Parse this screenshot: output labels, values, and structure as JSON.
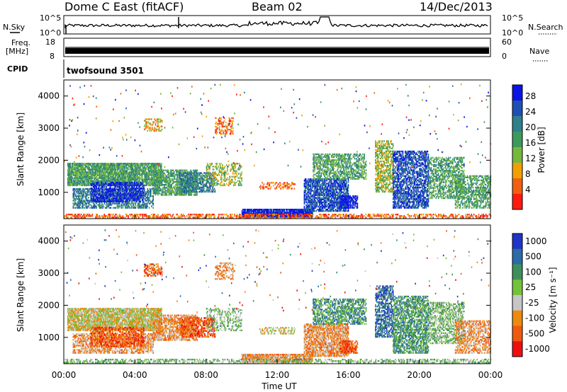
{
  "header": {
    "site": "Dome C East (fitACF)",
    "beam": "Beam 02",
    "date": "14/Dec/2013"
  },
  "top_strip": {
    "left_label": "N.Sky",
    "right_label": "N.Search",
    "left_ticks": [
      "10^5",
      "10^0"
    ],
    "right_ticks": [
      "10^5",
      "10^0"
    ]
  },
  "freq_strip": {
    "left_label_1": "Freq.",
    "left_label_2": "[MHz]",
    "left_ticks": [
      "18",
      "8"
    ],
    "right_label": "Nave",
    "right_ticks": [
      "60",
      "0"
    ]
  },
  "cpid": {
    "label": "CPID",
    "value": "twofsound 3501"
  },
  "colors": {
    "power_scale": [
      "#0a14e6",
      "#1e4fb4",
      "#2f7f8c",
      "#3d9a5c",
      "#76b83c",
      "#f0a000",
      "#f06010",
      "#ff1a10"
    ],
    "velocity_scale": [
      "#1f35c8",
      "#2a6ba8",
      "#3f8f5c",
      "#74c23a",
      "#c6c6c6",
      "#ee8a10",
      "#f05a10",
      "#ee1010"
    ]
  },
  "chart_data": [
    {
      "type": "heatmap",
      "title": "",
      "xlabel": "Time UT",
      "ylabel": "Slant Range [km]",
      "x_ticks": [
        "00:00",
        "04:00",
        "08:00",
        "12:00",
        "16:00",
        "20:00",
        "00:00"
      ],
      "xlim": [
        0,
        24
      ],
      "ylim": [
        180,
        4500
      ],
      "y_ticks": [
        "1000",
        "2000",
        "3000",
        "4000"
      ],
      "colorbar_label": "Power [dB]",
      "colorbar_ticks": [
        "28",
        "24",
        "20",
        "16",
        "12",
        "8",
        "4"
      ],
      "colorbar_range": [
        0,
        30
      ]
    },
    {
      "type": "heatmap",
      "title": "",
      "xlabel": "Time UT",
      "ylabel": "Slant Range [km]",
      "x_ticks": [
        "00:00",
        "04:00",
        "08:00",
        "12:00",
        "16:00",
        "20:00",
        "00:00"
      ],
      "xlim": [
        0,
        24
      ],
      "ylim": [
        180,
        4500
      ],
      "y_ticks": [
        "1000",
        "2000",
        "3000",
        "4000"
      ],
      "colorbar_label": "Velocity [m s⁻¹]",
      "colorbar_ticks": [
        "1000",
        "500",
        "100",
        "25",
        "-25",
        "-100",
        "-500",
        "-1000"
      ],
      "colorbar_range": [
        -1000,
        1000
      ]
    }
  ]
}
